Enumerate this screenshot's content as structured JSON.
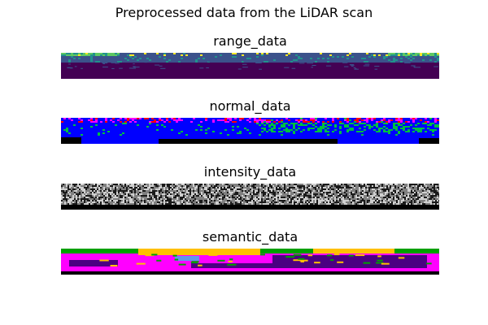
{
  "figure": {
    "title": "Preprocessed data from the LiDAR scan"
  },
  "panels": [
    {
      "key": "range",
      "title": "range_data",
      "colors": {
        "near": "#440154",
        "mid": "#3b528b",
        "teal": "#21918c",
        "green": "#5ec962",
        "far": "#fde725"
      }
    },
    {
      "key": "normal",
      "title": "normal_data",
      "colors": {
        "blue": "#0000ff",
        "green": "#00c040",
        "red": "#ff0000",
        "magenta": "#ff00ff",
        "black": "#000000"
      }
    },
    {
      "key": "intensity",
      "title": "intensity_data",
      "colors": {
        "dark": "#1a1a1a",
        "mid": "#808080",
        "light": "#d0d0d0",
        "black": "#000000"
      }
    },
    {
      "key": "semantic",
      "title": "semantic_data",
      "colors": {
        "road": "#ff00ff",
        "sidewalk": "#4b0082",
        "vegetation": "#00a000",
        "building": "#ffc000",
        "car": "#6495ed",
        "black": "#000000"
      }
    }
  ]
}
